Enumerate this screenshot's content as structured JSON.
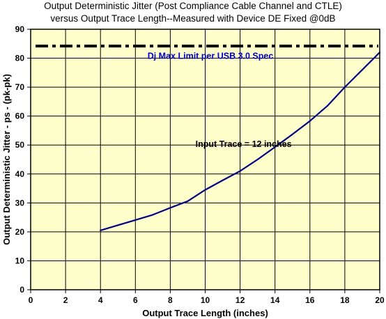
{
  "chart_data": {
    "type": "line",
    "title_line1": "Output Deterministic Jitter (Post Compliance Cable Channel and CTLE)",
    "title_line2": "versus Output Trace Length--Measured with Device DE Fixed @0dB",
    "xlabel": "Output Trace Length (inches)",
    "ylabel": "Output Deterministic Jitter - ps - (pk-pk)",
    "xlim": [
      0,
      20
    ],
    "ylim": [
      0,
      90
    ],
    "xticks": [
      0,
      2,
      4,
      6,
      8,
      10,
      12,
      14,
      16,
      18,
      20
    ],
    "yticks": [
      0,
      10,
      20,
      30,
      40,
      50,
      60,
      70,
      80,
      90
    ],
    "grid": true,
    "series": [
      {
        "color": "#000080",
        "x": [
          4,
          5,
          6,
          7,
          8,
          9,
          10,
          11,
          12,
          13,
          14,
          15,
          16,
          17,
          18,
          19,
          20
        ],
        "y": [
          20.5,
          22.3,
          24.1,
          25.9,
          28.3,
          30.6,
          34.5,
          37.8,
          41,
          45,
          49.3,
          53.7,
          58.3,
          63.5,
          70,
          76,
          82
        ]
      }
    ],
    "reference_line": {
      "y": 84.2,
      "color": "#000000",
      "style": "dash-dot"
    },
    "annotations": [
      {
        "text": "Dj Max Limit  per USB 3.0 Spec",
        "x": 10.3,
        "y": 79.8,
        "color": "#0000cc"
      },
      {
        "text": "Input Trace = 12 inches",
        "x": 12.2,
        "y": 49.3,
        "color": "#000000"
      }
    ],
    "plot_background": "#ffffcc"
  }
}
